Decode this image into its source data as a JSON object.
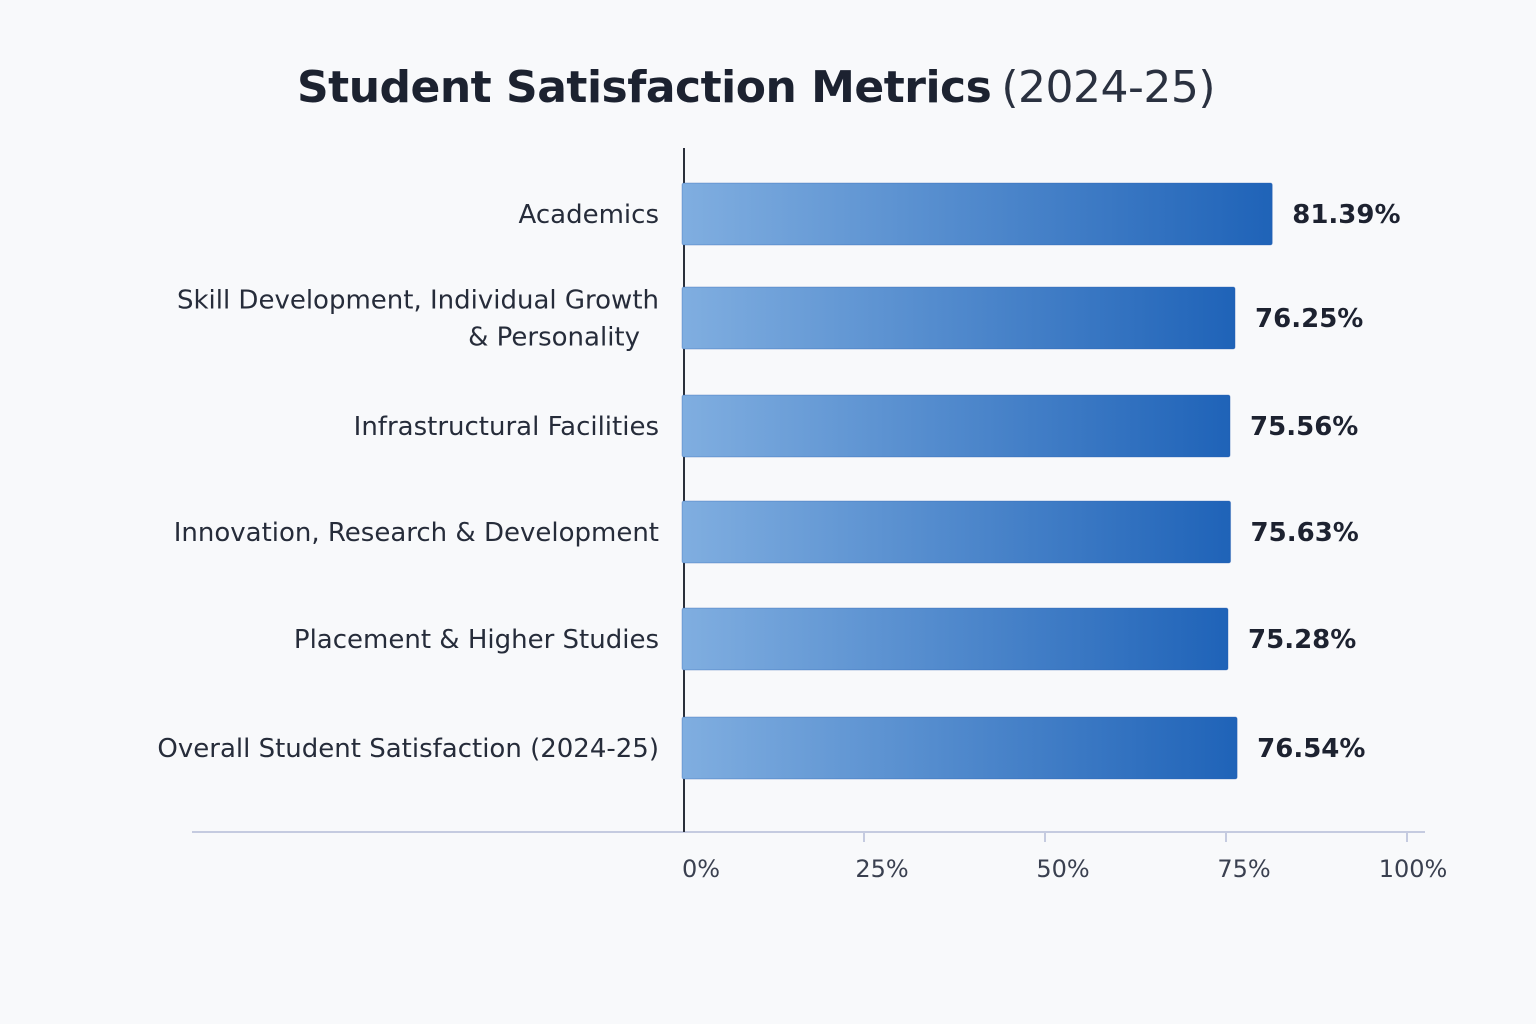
{
  "title": "Student Satisfaction Metrics",
  "subtitle": "(2024-25)",
  "colors": {
    "bar_start": "#80aee0",
    "bar_end": "#1f63b8",
    "axis": "#c5cbe0",
    "zero_line": "#2a2f3a"
  },
  "chart_data": {
    "type": "bar",
    "orientation": "horizontal",
    "title": "Student Satisfaction Metrics (2024-25)",
    "categories": [
      [
        "Academics"
      ],
      [
        "Skill Development, Individual Growth",
        "& Personality"
      ],
      [
        "Infrastructural Facilities"
      ],
      [
        "Innovation, Research & Development"
      ],
      [
        "Placement & Higher Studies"
      ],
      [
        "Overall Student Satisfaction (2024-25)"
      ]
    ],
    "values": [
      81.39,
      76.25,
      75.56,
      75.63,
      75.28,
      76.54
    ],
    "value_labels": [
      "81.39%",
      "76.25%",
      "75.56%",
      "75.63%",
      "75.28%",
      "76.54%"
    ],
    "xlim": [
      0,
      100
    ],
    "xticks": [
      0,
      25,
      50,
      75,
      100
    ],
    "xtick_labels": [
      "0%",
      "25%",
      "50%",
      "75%",
      "100%"
    ],
    "grid": false,
    "legend": "none"
  }
}
